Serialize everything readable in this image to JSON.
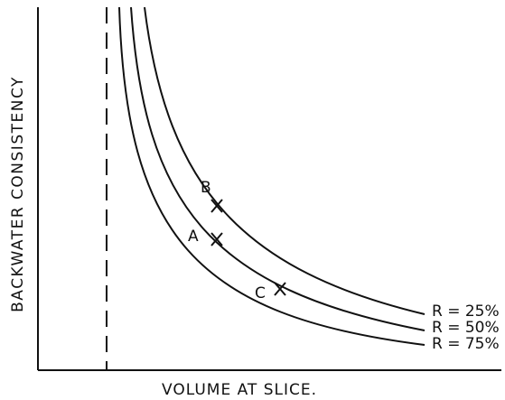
{
  "axes": {
    "y_label": "BACKWATER CONSISTENCY",
    "x_label": "VOLUME AT SLICE."
  },
  "curves": [
    {
      "label": "R = 25%"
    },
    {
      "label": "R = 50%"
    },
    {
      "label": "R = 75%"
    }
  ],
  "points": [
    {
      "label": "B"
    },
    {
      "label": "A"
    },
    {
      "label": "C"
    }
  ]
}
